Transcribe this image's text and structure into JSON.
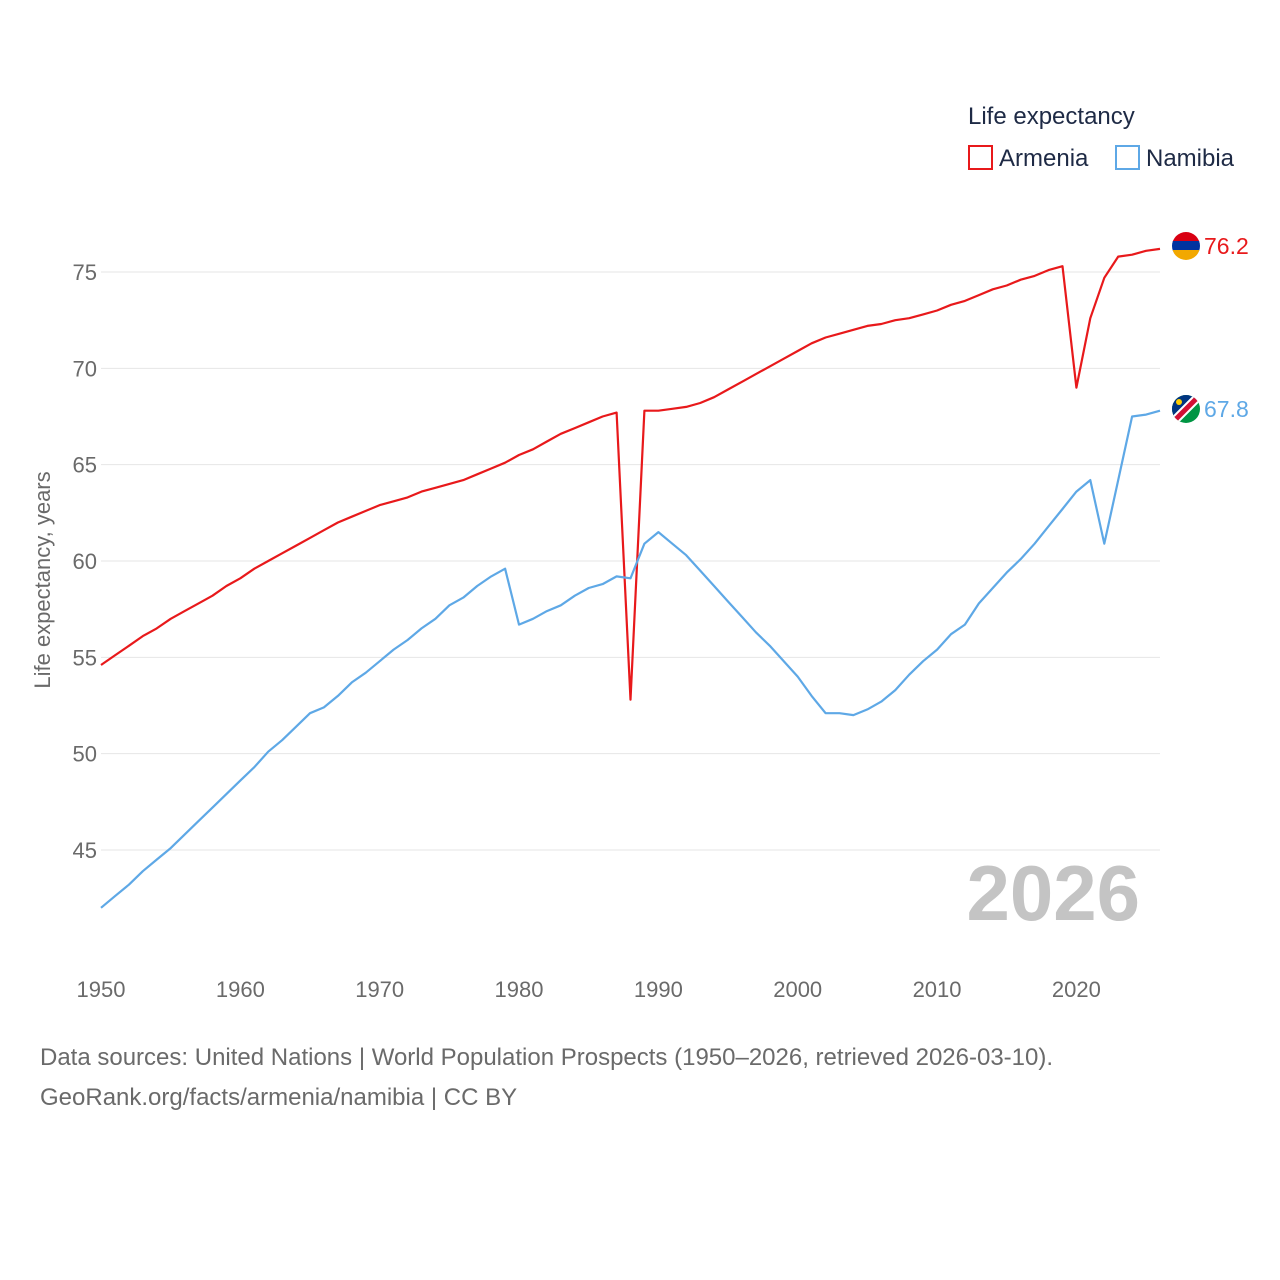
{
  "chart_data": {
    "type": "line",
    "title": "",
    "xlabel": "",
    "ylabel": "Life expectancy, years",
    "xlim": [
      1950,
      2026
    ],
    "ylim": [
      40,
      78
    ],
    "y_ticks": [
      45,
      50,
      55,
      60,
      65,
      70,
      75
    ],
    "x_ticks": [
      1950,
      1960,
      1970,
      1980,
      1990,
      2000,
      2010,
      2020
    ],
    "y_tick_labels": [
      "45",
      "50",
      "55",
      "60",
      "65",
      "70",
      "75"
    ],
    "x_tick_labels": [
      "1950",
      "1960",
      "1970",
      "1980",
      "1990",
      "2000",
      "2010",
      "2020"
    ],
    "legend_title": "Life expectancy",
    "legend_position": "top-right",
    "year_watermark": "2026",
    "x": [
      1950,
      1951,
      1952,
      1953,
      1954,
      1955,
      1956,
      1957,
      1958,
      1959,
      1960,
      1961,
      1962,
      1963,
      1964,
      1965,
      1966,
      1967,
      1968,
      1969,
      1970,
      1971,
      1972,
      1973,
      1974,
      1975,
      1976,
      1977,
      1978,
      1979,
      1980,
      1981,
      1982,
      1983,
      1984,
      1985,
      1986,
      1987,
      1988,
      1989,
      1990,
      1991,
      1992,
      1993,
      1994,
      1995,
      1996,
      1997,
      1998,
      1999,
      2000,
      2001,
      2002,
      2003,
      2004,
      2005,
      2006,
      2007,
      2008,
      2009,
      2010,
      2011,
      2012,
      2013,
      2014,
      2015,
      2016,
      2017,
      2018,
      2019,
      2020,
      2021,
      2022,
      2023,
      2024,
      2025,
      2026
    ],
    "series": [
      {
        "name": "Armenia",
        "color": "#e8191b",
        "end_label": "76.2",
        "values": [
          54.6,
          55.1,
          55.6,
          56.1,
          56.5,
          57.0,
          57.4,
          57.8,
          58.2,
          58.7,
          59.1,
          59.6,
          60.0,
          60.4,
          60.8,
          61.2,
          61.6,
          62.0,
          62.3,
          62.6,
          62.9,
          63.1,
          63.3,
          63.6,
          63.8,
          64.0,
          64.2,
          64.5,
          64.8,
          65.1,
          65.5,
          65.8,
          66.2,
          66.6,
          66.9,
          67.2,
          67.5,
          67.7,
          52.8,
          67.8,
          67.8,
          67.9,
          68.0,
          68.2,
          68.5,
          68.9,
          69.3,
          69.7,
          70.1,
          70.5,
          70.9,
          71.3,
          71.6,
          71.8,
          72.0,
          72.2,
          72.3,
          72.5,
          72.6,
          72.8,
          73.0,
          73.3,
          73.5,
          73.8,
          74.1,
          74.3,
          74.6,
          74.8,
          75.1,
          75.3,
          69.0,
          72.6,
          74.7,
          75.8,
          75.9,
          76.1,
          76.2
        ]
      },
      {
        "name": "Namibia",
        "color": "#5ea8e6",
        "end_label": "67.8",
        "values": [
          42.0,
          42.6,
          43.2,
          43.9,
          44.5,
          45.1,
          45.8,
          46.5,
          47.2,
          47.9,
          48.6,
          49.3,
          50.1,
          50.7,
          51.4,
          52.1,
          52.4,
          53.0,
          53.7,
          54.2,
          54.8,
          55.4,
          55.9,
          56.5,
          57.0,
          57.7,
          58.1,
          58.7,
          59.2,
          59.6,
          56.7,
          57.0,
          57.4,
          57.7,
          58.2,
          58.6,
          58.8,
          59.2,
          59.1,
          60.9,
          61.5,
          60.9,
          60.3,
          59.5,
          58.7,
          57.9,
          57.1,
          56.3,
          55.6,
          54.8,
          54.0,
          53.0,
          52.1,
          52.1,
          52.0,
          52.3,
          52.7,
          53.3,
          54.1,
          54.8,
          55.4,
          56.2,
          56.7,
          57.8,
          58.6,
          59.4,
          60.1,
          60.9,
          61.8,
          62.7,
          63.6,
          64.2,
          60.9,
          64.2,
          67.5,
          67.6,
          67.8
        ]
      }
    ]
  },
  "source_line1": "Data sources: United Nations | World Population Prospects (1950–2026, retrieved 2026-03-10).",
  "source_line2": "GeoRank.org/facts/armenia/namibia | CC BY"
}
